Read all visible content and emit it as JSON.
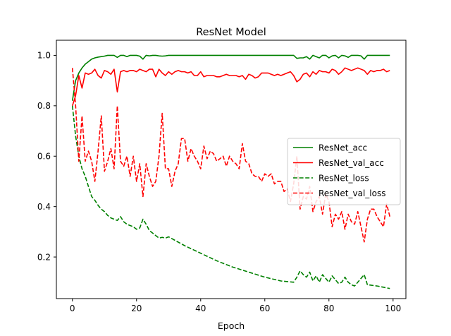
{
  "chart_data": {
    "type": "line",
    "title": "ResNet Model",
    "xlabel": "Epoch",
    "ylabel": "",
    "xlim": [
      -5,
      104
    ],
    "ylim": [
      0.035,
      1.06
    ],
    "xticks": [
      0,
      20,
      40,
      60,
      80,
      100
    ],
    "yticks": [
      0.2,
      0.4,
      0.6,
      0.8,
      1.0
    ],
    "xtick_labels": [
      "0",
      "20",
      "40",
      "60",
      "80",
      "100"
    ],
    "ytick_labels": [
      "0.2",
      "0.4",
      "0.6",
      "0.8",
      "1.0"
    ],
    "grid": false,
    "legend_position": "center-right",
    "series": [
      {
        "name": "ResNet_acc",
        "color": "#008000",
        "dash": "solid",
        "x": [
          0,
          1,
          2,
          3,
          4,
          5,
          6,
          7,
          8,
          9,
          10,
          11,
          12,
          13,
          14,
          15,
          16,
          17,
          18,
          19,
          20,
          21,
          22,
          23,
          24,
          25,
          26,
          27,
          28,
          29,
          30,
          35,
          40,
          45,
          50,
          55,
          60,
          65,
          69,
          70,
          71,
          72,
          73,
          74,
          75,
          76,
          77,
          78,
          79,
          80,
          81,
          82,
          83,
          84,
          85,
          86,
          87,
          88,
          89,
          90,
          91,
          92,
          95,
          99
        ],
        "y": [
          0.82,
          0.9,
          0.93,
          0.95,
          0.965,
          0.975,
          0.985,
          0.99,
          0.993,
          0.995,
          0.997,
          1.0,
          1.0,
          1.0,
          0.992,
          1.0,
          1.0,
          0.995,
          1.0,
          1.0,
          1.0,
          0.997,
          0.985,
          1.0,
          0.998,
          1.0,
          1.0,
          0.998,
          0.997,
          0.998,
          1.0,
          1.0,
          1.0,
          1.0,
          1.0,
          1.0,
          1.0,
          1.0,
          1.0,
          0.988,
          0.99,
          0.99,
          0.995,
          0.985,
          1.0,
          0.995,
          0.99,
          1.0,
          1.0,
          0.99,
          0.998,
          1.0,
          0.99,
          1.0,
          0.998,
          0.992,
          1.0,
          1.0,
          1.0,
          0.998,
          0.985,
          1.0,
          1.0,
          1.0
        ]
      },
      {
        "name": "ResNet_val_acc",
        "color": "#ff0000",
        "dash": "solid",
        "x": [
          0,
          1,
          2,
          3,
          4,
          5,
          6,
          7,
          8,
          9,
          10,
          11,
          12,
          13,
          14,
          15,
          16,
          17,
          18,
          19,
          20,
          21,
          22,
          23,
          24,
          25,
          26,
          27,
          28,
          29,
          30,
          31,
          32,
          33,
          34,
          35,
          36,
          37,
          38,
          39,
          40,
          41,
          42,
          43,
          44,
          45,
          46,
          47,
          48,
          49,
          50,
          51,
          52,
          53,
          54,
          55,
          56,
          57,
          58,
          59,
          60,
          61,
          62,
          63,
          64,
          65,
          66,
          67,
          68,
          69,
          70,
          71,
          72,
          73,
          74,
          75,
          76,
          77,
          78,
          79,
          80,
          81,
          82,
          83,
          84,
          85,
          86,
          87,
          88,
          89,
          90,
          91,
          92,
          93,
          94,
          95,
          96,
          97,
          98,
          99
        ],
        "y": [
          0.8,
          0.84,
          0.92,
          0.87,
          0.93,
          0.925,
          0.93,
          0.945,
          0.92,
          0.91,
          0.94,
          0.935,
          0.925,
          0.945,
          0.855,
          0.935,
          0.94,
          0.935,
          0.94,
          0.94,
          0.935,
          0.945,
          0.94,
          0.935,
          0.945,
          0.945,
          0.915,
          0.945,
          0.93,
          0.92,
          0.935,
          0.925,
          0.935,
          0.94,
          0.935,
          0.935,
          0.93,
          0.935,
          0.92,
          0.92,
          0.935,
          0.915,
          0.92,
          0.92,
          0.92,
          0.915,
          0.915,
          0.92,
          0.925,
          0.92,
          0.92,
          0.92,
          0.915,
          0.92,
          0.905,
          0.925,
          0.92,
          0.91,
          0.915,
          0.93,
          0.93,
          0.93,
          0.925,
          0.92,
          0.925,
          0.92,
          0.925,
          0.93,
          0.935,
          0.92,
          0.895,
          0.905,
          0.925,
          0.93,
          0.915,
          0.935,
          0.925,
          0.94,
          0.935,
          0.935,
          0.93,
          0.945,
          0.94,
          0.925,
          0.935,
          0.95,
          0.945,
          0.94,
          0.945,
          0.95,
          0.945,
          0.94,
          0.925,
          0.94,
          0.935,
          0.94,
          0.94,
          0.945,
          0.935,
          0.94
        ]
      },
      {
        "name": "ResNet_loss",
        "color": "#008000",
        "dash": "dashed",
        "x": [
          0,
          1,
          2,
          3,
          4,
          5,
          6,
          7,
          8,
          9,
          10,
          11,
          12,
          13,
          14,
          15,
          16,
          17,
          18,
          19,
          20,
          21,
          22,
          23,
          24,
          25,
          26,
          27,
          28,
          29,
          30,
          35,
          40,
          45,
          50,
          55,
          60,
          65,
          69,
          70,
          71,
          72,
          73,
          74,
          75,
          76,
          77,
          78,
          79,
          80,
          81,
          82,
          83,
          84,
          85,
          86,
          87,
          88,
          89,
          90,
          91,
          92,
          95,
          99
        ],
        "y": [
          0.8,
          0.68,
          0.6,
          0.55,
          0.52,
          0.48,
          0.44,
          0.425,
          0.405,
          0.39,
          0.38,
          0.365,
          0.355,
          0.35,
          0.345,
          0.36,
          0.34,
          0.33,
          0.325,
          0.32,
          0.31,
          0.315,
          0.35,
          0.33,
          0.305,
          0.295,
          0.285,
          0.275,
          0.278,
          0.275,
          0.28,
          0.245,
          0.215,
          0.185,
          0.16,
          0.14,
          0.12,
          0.105,
          0.1,
          0.12,
          0.145,
          0.13,
          0.12,
          0.14,
          0.105,
          0.125,
          0.1,
          0.13,
          0.115,
          0.1,
          0.125,
          0.11,
          0.095,
          0.1,
          0.12,
          0.1,
          0.09,
          0.085,
          0.1,
          0.115,
          0.13,
          0.09,
          0.085,
          0.075
        ]
      },
      {
        "name": "ResNet_val_loss",
        "color": "#ff0000",
        "dash": "dashed",
        "x": [
          0,
          1,
          2,
          3,
          4,
          5,
          6,
          7,
          8,
          9,
          10,
          11,
          12,
          13,
          14,
          15,
          16,
          17,
          18,
          19,
          20,
          21,
          22,
          23,
          24,
          25,
          26,
          27,
          28,
          29,
          30,
          31,
          32,
          33,
          34,
          35,
          36,
          37,
          38,
          39,
          40,
          41,
          42,
          43,
          44,
          45,
          46,
          47,
          48,
          49,
          50,
          51,
          52,
          53,
          54,
          55,
          56,
          57,
          58,
          59,
          60,
          61,
          62,
          63,
          64,
          65,
          66,
          67,
          68,
          69,
          70,
          71,
          72,
          73,
          74,
          75,
          76,
          77,
          78,
          79,
          80,
          81,
          82,
          83,
          84,
          85,
          86,
          87,
          88,
          89,
          90,
          91,
          92,
          93,
          94,
          95,
          96,
          97,
          98,
          99
        ],
        "y": [
          0.95,
          0.8,
          0.58,
          0.76,
          0.58,
          0.62,
          0.58,
          0.5,
          0.62,
          0.76,
          0.54,
          0.58,
          0.63,
          0.55,
          0.8,
          0.58,
          0.56,
          0.6,
          0.52,
          0.6,
          0.5,
          0.57,
          0.44,
          0.57,
          0.52,
          0.48,
          0.5,
          0.6,
          0.77,
          0.55,
          0.55,
          0.48,
          0.54,
          0.57,
          0.67,
          0.67,
          0.58,
          0.63,
          0.6,
          0.58,
          0.55,
          0.64,
          0.59,
          0.62,
          0.61,
          0.58,
          0.59,
          0.6,
          0.56,
          0.6,
          0.58,
          0.57,
          0.55,
          0.65,
          0.58,
          0.57,
          0.53,
          0.52,
          0.52,
          0.5,
          0.53,
          0.52,
          0.53,
          0.49,
          0.5,
          0.5,
          0.46,
          0.47,
          0.42,
          0.49,
          0.6,
          0.39,
          0.44,
          0.43,
          0.48,
          0.38,
          0.42,
          0.44,
          0.37,
          0.45,
          0.42,
          0.32,
          0.37,
          0.35,
          0.38,
          0.31,
          0.37,
          0.34,
          0.33,
          0.38,
          0.32,
          0.26,
          0.35,
          0.39,
          0.39,
          0.36,
          0.34,
          0.32,
          0.41,
          0.36
        ]
      }
    ]
  }
}
